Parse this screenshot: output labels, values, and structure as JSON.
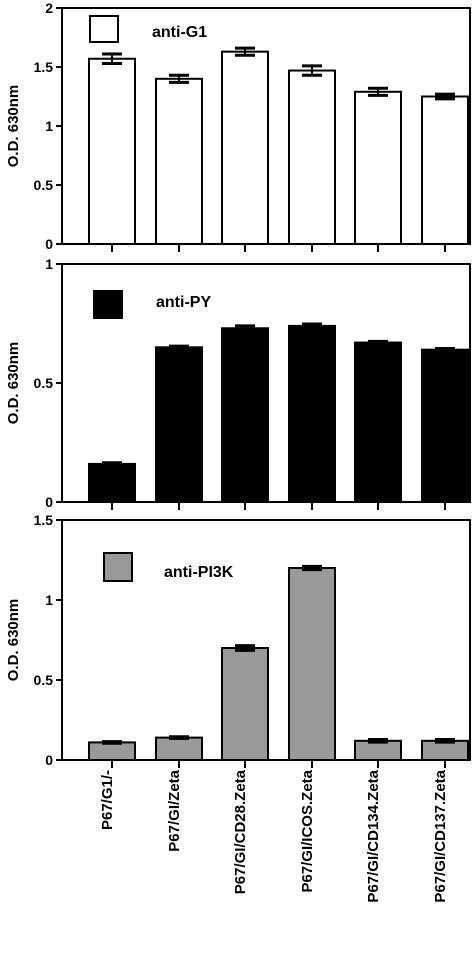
{
  "categories": [
    "P67/G1/-",
    "P67/GI/Zeta",
    "P67/GI/CD28.Zeta",
    "P67/GI/ICOS.Zeta",
    "P67/GI/CD134.Zeta",
    "P67/GI/CD137.Zeta"
  ],
  "chart_data": [
    {
      "type": "bar",
      "title": "",
      "xlabel": "",
      "ylabel": "O.D. 630nm",
      "ylim": [
        0,
        2
      ],
      "yticks": [
        "0",
        "0.5",
        "1",
        "1.5",
        "2"
      ],
      "legend": "anti-G1",
      "legend_position": "top-left",
      "bar_color": "#ffffff",
      "categories": [
        "P67/G1/-",
        "P67/GI/Zeta",
        "P67/GI/CD28.Zeta",
        "P67/GI/ICOS.Zeta",
        "P67/GI/CD134.Zeta",
        "P67/GI/CD137.Zeta"
      ],
      "values": [
        1.57,
        1.4,
        1.63,
        1.47,
        1.29,
        1.25
      ],
      "errors": [
        0.04,
        0.03,
        0.03,
        0.04,
        0.03,
        0.02
      ]
    },
    {
      "type": "bar",
      "title": "",
      "xlabel": "",
      "ylabel": "O.D. 630nm",
      "ylim": [
        0,
        1
      ],
      "yticks": [
        "0",
        "0.5",
        "1"
      ],
      "legend": "anti-PY",
      "legend_position": "top-left",
      "bar_color": "#000000",
      "categories": [
        "P67/G1/-",
        "P67/GI/Zeta",
        "P67/GI/CD28.Zeta",
        "P67/GI/ICOS.Zeta",
        "P67/GI/CD134.Zeta",
        "P67/GI/CD137.Zeta"
      ],
      "values": [
        0.16,
        0.65,
        0.73,
        0.74,
        0.67,
        0.64
      ],
      "errors": [
        0.005,
        0.005,
        0.01,
        0.008,
        0.005,
        0.005
      ]
    },
    {
      "type": "bar",
      "title": "",
      "xlabel": "",
      "ylabel": "O.D. 630nm",
      "ylim": [
        0,
        1.5
      ],
      "yticks": [
        "0",
        "0.5",
        "1",
        "1.5"
      ],
      "legend": "anti-PI3K",
      "legend_position": "top-left",
      "bar_color": "#999999",
      "categories": [
        "P67/G1/-",
        "P67/GI/Zeta",
        "P67/GI/CD28.Zeta",
        "P67/GI/ICOS.Zeta",
        "P67/GI/CD134.Zeta",
        "P67/GI/CD137.Zeta"
      ],
      "values": [
        0.11,
        0.14,
        0.7,
        1.2,
        0.12,
        0.12
      ],
      "errors": [
        0.005,
        0.005,
        0.015,
        0.01,
        0.008,
        0.008
      ]
    }
  ]
}
